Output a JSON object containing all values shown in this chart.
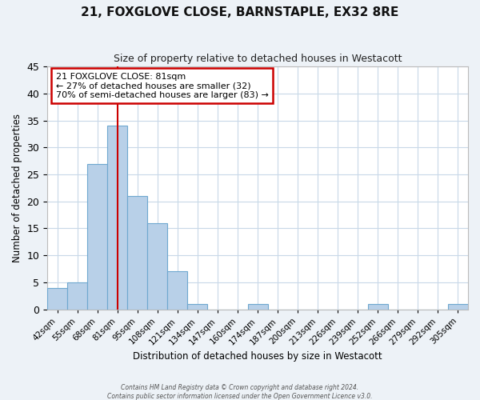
{
  "title1": "21, FOXGLOVE CLOSE, BARNSTAPLE, EX32 8RE",
  "title2": "Size of property relative to detached houses in Westacott",
  "xlabel": "Distribution of detached houses by size in Westacott",
  "ylabel": "Number of detached properties",
  "bin_labels": [
    "42sqm",
    "55sqm",
    "68sqm",
    "81sqm",
    "95sqm",
    "108sqm",
    "121sqm",
    "134sqm",
    "147sqm",
    "160sqm",
    "174sqm",
    "187sqm",
    "200sqm",
    "213sqm",
    "226sqm",
    "239sqm",
    "252sqm",
    "266sqm",
    "279sqm",
    "292sqm",
    "305sqm"
  ],
  "bar_values": [
    4,
    5,
    27,
    34,
    21,
    16,
    7,
    1,
    0,
    0,
    1,
    0,
    0,
    0,
    0,
    0,
    1,
    0,
    0,
    0,
    1
  ],
  "bar_color": "#b8d0e8",
  "bar_edge_color": "#6fa8d0",
  "vline_index": 3,
  "vline_color": "#cc0000",
  "annotation_box_facecolor": "#ffffff",
  "annotation_border_color": "#cc0000",
  "annotation_line1": "21 FOXGLOVE CLOSE: 81sqm",
  "annotation_line2": "← 27% of detached houses are smaller (32)",
  "annotation_line3": "70% of semi-detached houses are larger (83) →",
  "ylim": [
    0,
    45
  ],
  "yticks": [
    0,
    5,
    10,
    15,
    20,
    25,
    30,
    35,
    40,
    45
  ],
  "footer1": "Contains HM Land Registry data © Crown copyright and database right 2024.",
  "footer2": "Contains public sector information licensed under the Open Government Licence v3.0.",
  "fig_bg_color": "#edf2f7",
  "plot_bg_color": "#ffffff",
  "grid_color": "#c8d8e8"
}
